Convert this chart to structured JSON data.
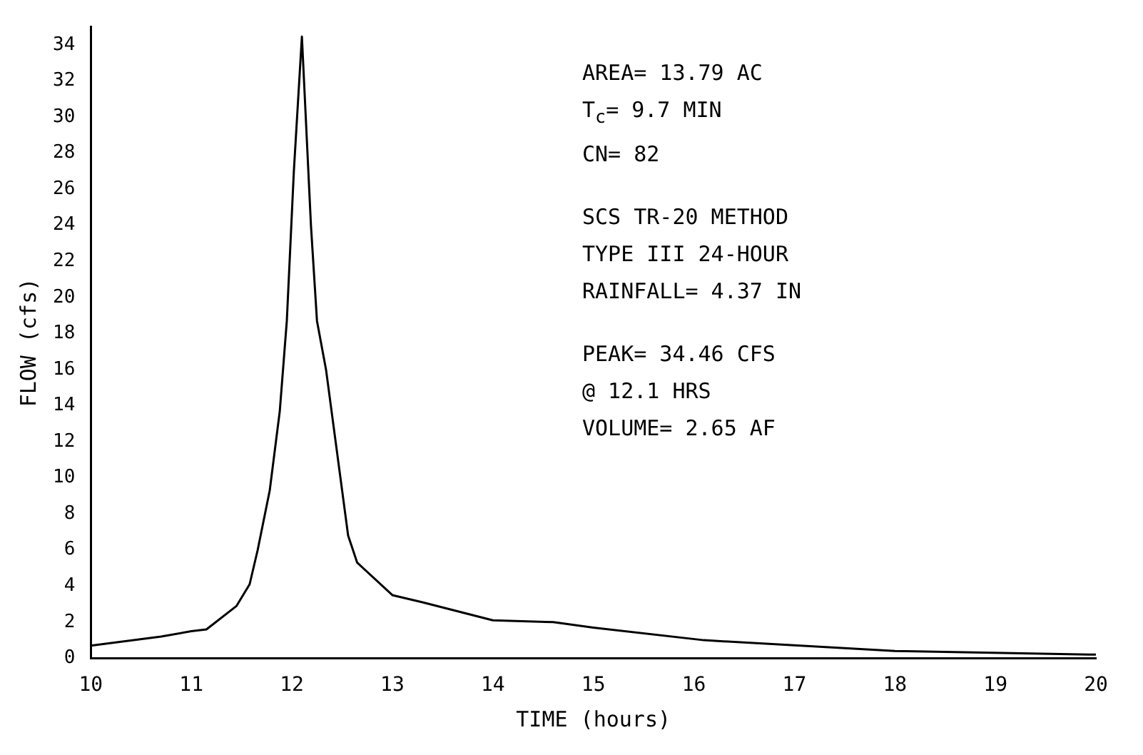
{
  "chart_data": {
    "type": "line",
    "xlabel": "TIME (hours)",
    "ylabel": "FLOW (cfs)",
    "x": [
      10.0,
      10.7,
      11.0,
      11.15,
      11.45,
      11.58,
      11.66,
      11.78,
      11.88,
      11.95,
      12.02,
      12.1,
      12.19,
      12.25,
      12.34,
      12.56,
      12.65,
      13.0,
      13.3,
      14.0,
      14.6,
      15.0,
      16.1,
      18.0,
      20.0
    ],
    "series": [
      {
        "color": "#000000",
        "values": [
          0.7,
          1.2,
          1.5,
          1.6,
          2.9,
          4.1,
          6.0,
          9.3,
          13.7,
          18.7,
          27,
          34.46,
          24,
          18.7,
          16,
          6.8,
          5.3,
          3.5,
          3.1,
          2.1,
          2.0,
          1.7,
          1.0,
          0.4,
          0.2
        ]
      }
    ],
    "xlim": [
      10,
      20
    ],
    "xticks": [
      10,
      11,
      12,
      13,
      14,
      15,
      16,
      17,
      18,
      19,
      20
    ],
    "ylim": [
      0,
      35
    ],
    "yticks": [
      0,
      2,
      4,
      6,
      8,
      10,
      12,
      14,
      16,
      18,
      20,
      22,
      24,
      26,
      28,
      30,
      32,
      34
    ],
    "marker": "none",
    "annotations": [
      "AREA= 13.79 AC",
      "T$_{c}$= 9.7 MIN",
      "CN= 82",
      "SCS TR-20 METHOD",
      "TYPE III 24-HOUR",
      "RAINFALL= 4.37 IN",
      "PEAK= 34.46 CFS",
      "@ 12.1 HRS",
      "VOLUME= 2.65 AF"
    ]
  }
}
